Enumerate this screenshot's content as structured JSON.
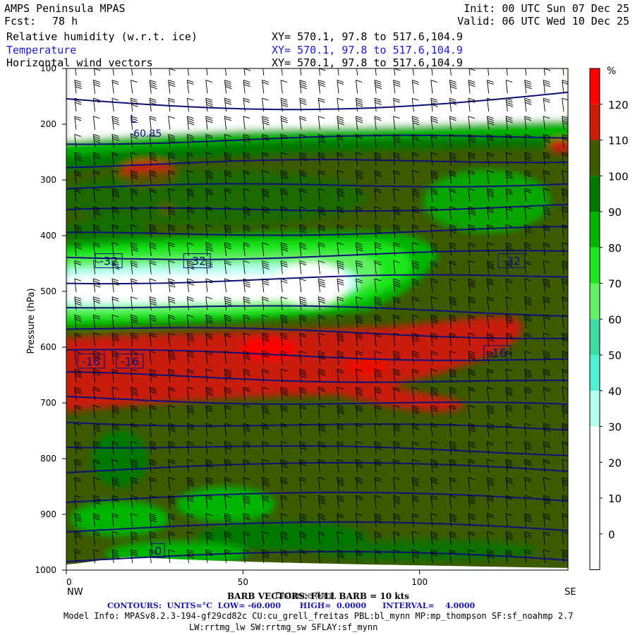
{
  "header": {
    "model_title": "AMPS Peninsula MPAS",
    "fcst_label": "Fcst:",
    "fcst_value": "78 h",
    "init": "Init: 00 UTC Sun 07 Dec 25",
    "valid": "Valid: 06 UTC Wed 10 Dec 25",
    "fields": [
      {
        "name": "Relative humidity (w.r.t. ice)",
        "xy": "XY= 570.1, 97.8 to 517.6,104.9",
        "color": "#000000"
      },
      {
        "name": "Temperature",
        "xy": "XY= 570.1, 97.8 to 517.6,104.9",
        "color": "#1a1ac8"
      },
      {
        "name": "Horizontal wind vectors",
        "xy": "XY= 570.1, 97.8 to 517.6,104.9",
        "color": "#000000"
      }
    ]
  },
  "colorbar": {
    "unit": "%",
    "labels": [
      "120",
      "110",
      "100",
      "90",
      "80",
      "70",
      "60",
      "50",
      "40",
      "30",
      "20",
      "10",
      "0"
    ],
    "colors": [
      "#ff0000",
      "#c81e0a",
      "#3c5a00",
      "#007800",
      "#00b400",
      "#1ee61e",
      "#64f064",
      "#3cdca0",
      "#50f0d2",
      "#b4fff0",
      "#ffffff",
      "#ffffff",
      "#ffffff",
      "#ffffff"
    ]
  },
  "footer": {
    "barb_text": "BARB VECTORS: FULL BARB = 10 kts",
    "xlabel_overlap": "Distance (km)",
    "contours": "CONTOURS:  UNITS=°C  LOW= -60.000       HIGH=  0.0000      INTERVAL=    4.0000",
    "model_info_1": "Model Info: MPASv8.2.3-194-gf29cd82c CU:cu_grell_freitas PBL:bl_mynn MP:mp_thompson SF:sf_noahmp 2.7",
    "model_info_2": "LW:rrtmg_lw SW:rrtmg_sw SFLAY:sf_mynn"
  },
  "chart_data": {
    "type": "heatmap",
    "description_fields": [
      "Relative humidity (w.r.t. ice)",
      "Temperature",
      "Horizontal wind vectors"
    ],
    "ylabel": "Pressure (hPa)",
    "y_ticks": [
      100,
      200,
      300,
      400,
      500,
      600,
      700,
      800,
      900,
      1000
    ],
    "ylim": [
      1000,
      100
    ],
    "x_ticks": [
      0,
      50,
      100
    ],
    "xlim": [
      0,
      142
    ],
    "x_endpoints": [
      "NW",
      "SE"
    ],
    "temperature_contours": {
      "interval": 4,
      "labels": [
        {
          "x": 12,
          "p": 445,
          "text": "-32"
        },
        {
          "x": 37,
          "p": 445,
          "text": "-32"
        },
        {
          "x": 126,
          "p": 445,
          "text": "-32"
        },
        {
          "x": 7,
          "p": 625,
          "text": "-16"
        },
        {
          "x": 18,
          "p": 625,
          "text": "-16"
        },
        {
          "x": 122,
          "p": 610,
          "text": "-16"
        },
        {
          "x": 26,
          "p": 965,
          "text": "0"
        }
      ]
    },
    "low_marker": {
      "x": 16,
      "p": 220,
      "label": "L",
      "text": "-60.85"
    },
    "rh_regions": [
      {
        "level": "dry",
        "p": [
          100,
          200
        ],
        "rh": "<20"
      },
      {
        "level": "moist",
        "p": [
          220,
          420
        ],
        "rh": "90-110"
      },
      {
        "level": "dry_band",
        "p": [
          420,
          560
        ],
        "rh": "<30"
      },
      {
        "level": "supersaturated",
        "p": [
          580,
          720
        ],
        "rh": ">110"
      },
      {
        "level": "moist_low",
        "p": [
          720,
          1000
        ],
        "rh": "90-110"
      }
    ]
  }
}
